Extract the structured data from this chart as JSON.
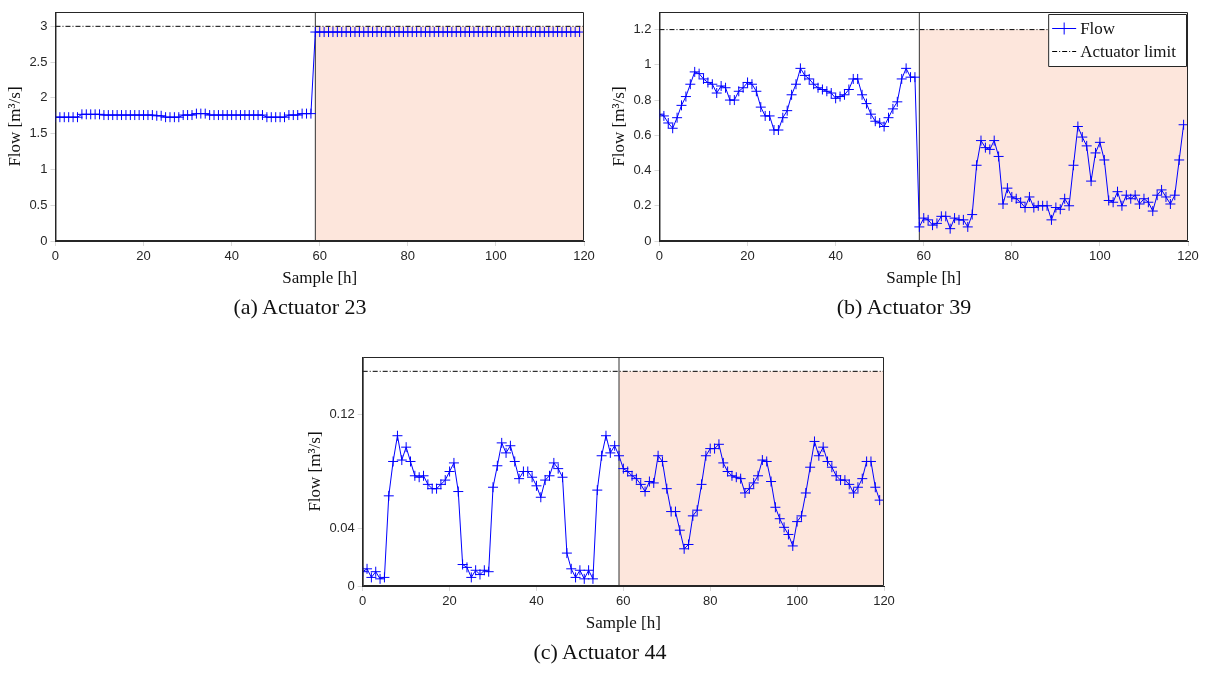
{
  "chart_data": [
    {
      "type": "line",
      "xlabel": "Sample [h]",
      "ylabel": "Flow [m³/s]",
      "annotations": [
        "(a) Actuator 23"
      ],
      "marker": "cross",
      "legend": false,
      "x": [
        0,
        1,
        2,
        3,
        4,
        5,
        6,
        7,
        8,
        9,
        10,
        11,
        12,
        13,
        14,
        15,
        16,
        17,
        18,
        19,
        20,
        21,
        22,
        23,
        24,
        25,
        26,
        27,
        28,
        29,
        30,
        31,
        32,
        33,
        34,
        35,
        36,
        37,
        38,
        39,
        40,
        41,
        42,
        43,
        44,
        45,
        46,
        47,
        48,
        49,
        50,
        51,
        52,
        53,
        54,
        55,
        56,
        57,
        58,
        59,
        60,
        61,
        62,
        63,
        64,
        65,
        66,
        67,
        68,
        69,
        70,
        71,
        72,
        73,
        74,
        75,
        76,
        77,
        78,
        79,
        80,
        81,
        82,
        83,
        84,
        85,
        86,
        87,
        88,
        89,
        90,
        91,
        92,
        93,
        94,
        95,
        96,
        97,
        98,
        99,
        100,
        101,
        102,
        103,
        104,
        105,
        106,
        107,
        108,
        109,
        110,
        111,
        112,
        113,
        114,
        115,
        116,
        117,
        118,
        119
      ],
      "series": [
        {
          "color": "#0000ff",
          "values": [
            1.73,
            1.73,
            1.73,
            1.73,
            1.73,
            1.73,
            1.77,
            1.77,
            1.77,
            1.77,
            1.77,
            1.76,
            1.76,
            1.76,
            1.76,
            1.76,
            1.76,
            1.76,
            1.76,
            1.76,
            1.76,
            1.76,
            1.76,
            1.75,
            1.75,
            1.73,
            1.73,
            1.73,
            1.73,
            1.76,
            1.76,
            1.76,
            1.78,
            1.78,
            1.78,
            1.76,
            1.76,
            1.76,
            1.76,
            1.76,
            1.76,
            1.76,
            1.76,
            1.76,
            1.76,
            1.76,
            1.76,
            1.76,
            1.73,
            1.73,
            1.73,
            1.73,
            1.73,
            1.76,
            1.76,
            1.76,
            1.78,
            1.78,
            1.78,
            2.92,
            2.92,
            2.92,
            2.92,
            2.92,
            2.92,
            2.92,
            2.92,
            2.92,
            2.92,
            2.92,
            2.92,
            2.92,
            2.92,
            2.92,
            2.92,
            2.92,
            2.92,
            2.92,
            2.92,
            2.92,
            2.92,
            2.92,
            2.92,
            2.92,
            2.92,
            2.92,
            2.92,
            2.92,
            2.92,
            2.92,
            2.92,
            2.92,
            2.92,
            2.92,
            2.92,
            2.92,
            2.92,
            2.92,
            2.92,
            2.92,
            2.92,
            2.92,
            2.92,
            2.92,
            2.92,
            2.92,
            2.92,
            2.92,
            2.92,
            2.92,
            2.92,
            2.92,
            2.92,
            2.92,
            2.92,
            2.92,
            2.92,
            2.92,
            2.92,
            2.92
          ]
        }
      ],
      "ref_lines": [
        {
          "axis": "y",
          "value": 3,
          "color": "#000000",
          "line_style": "dashed"
        },
        {
          "axis": "x",
          "value": 59,
          "color": "#333333"
        }
      ],
      "bands": [
        {
          "axis": "x",
          "from": 59,
          "to": 120,
          "color": "#fde6dc"
        }
      ],
      "xlim": [
        0,
        120
      ],
      "xticks": [
        0,
        20,
        40,
        60,
        80,
        100,
        120
      ],
      "ylim": [
        0,
        3.2
      ],
      "yticks": [
        0,
        0.5,
        1,
        1.5,
        2,
        2.5,
        3
      ]
    },
    {
      "type": "line",
      "xlabel": "Sample [h]",
      "ylabel": "Flow [m³/s]",
      "annotations": [
        "(b) Actuator 39"
      ],
      "marker": "cross",
      "legend": "top right",
      "x": [
        0,
        1,
        2,
        3,
        4,
        5,
        6,
        7,
        8,
        9,
        10,
        11,
        12,
        13,
        14,
        15,
        16,
        17,
        18,
        19,
        20,
        21,
        22,
        23,
        24,
        25,
        26,
        27,
        28,
        29,
        30,
        31,
        32,
        33,
        34,
        35,
        36,
        37,
        38,
        39,
        40,
        41,
        42,
        43,
        44,
        45,
        46,
        47,
        48,
        49,
        50,
        51,
        52,
        53,
        54,
        55,
        56,
        57,
        58,
        59,
        60,
        61,
        62,
        63,
        64,
        65,
        66,
        67,
        68,
        69,
        70,
        71,
        72,
        73,
        74,
        75,
        76,
        77,
        78,
        79,
        80,
        81,
        82,
        83,
        84,
        85,
        86,
        87,
        88,
        89,
        90,
        91,
        92,
        93,
        94,
        95,
        96,
        97,
        98,
        99,
        100,
        101,
        102,
        103,
        104,
        105,
        106,
        107,
        108,
        109,
        110,
        111,
        112,
        113,
        114,
        115,
        116,
        117,
        118,
        119
      ],
      "series": [
        {
          "name": "Flow",
          "color": "#0000ff",
          "values": [
            0.72,
            0.71,
            0.67,
            0.64,
            0.7,
            0.77,
            0.82,
            0.89,
            0.96,
            0.95,
            0.92,
            0.9,
            0.89,
            0.84,
            0.88,
            0.87,
            0.8,
            0.8,
            0.85,
            0.87,
            0.9,
            0.89,
            0.85,
            0.76,
            0.71,
            0.71,
            0.63,
            0.63,
            0.7,
            0.74,
            0.83,
            0.89,
            0.98,
            0.94,
            0.92,
            0.89,
            0.87,
            0.86,
            0.85,
            0.84,
            0.81,
            0.82,
            0.83,
            0.86,
            0.92,
            0.92,
            0.83,
            0.78,
            0.72,
            0.68,
            0.67,
            0.65,
            0.7,
            0.75,
            0.79,
            0.92,
            0.98,
            0.93,
            0.93,
            0.08,
            0.13,
            0.12,
            0.09,
            0.1,
            0.14,
            0.14,
            0.07,
            0.13,
            0.12,
            0.12,
            0.08,
            0.15,
            0.43,
            0.57,
            0.53,
            0.52,
            0.57,
            0.48,
            0.21,
            0.3,
            0.25,
            0.24,
            0.22,
            0.19,
            0.25,
            0.19,
            0.2,
            0.2,
            0.2,
            0.12,
            0.19,
            0.18,
            0.24,
            0.2,
            0.43,
            0.65,
            0.59,
            0.54,
            0.34,
            0.5,
            0.56,
            0.46,
            0.23,
            0.22,
            0.28,
            0.2,
            0.26,
            0.24,
            0.26,
            0.21,
            0.24,
            0.22,
            0.17,
            0.26,
            0.29,
            0.25,
            0.21,
            0.26,
            0.46,
            0.66
          ]
        }
      ],
      "ref_lines": [
        {
          "axis": "y",
          "value": 1.2,
          "label": "Actuator limit",
          "color": "#000000",
          "line_style": "dashed"
        },
        {
          "axis": "x",
          "value": 59,
          "color": "#333333"
        }
      ],
      "bands": [
        {
          "axis": "x",
          "from": 59,
          "to": 120,
          "color": "#fde6dc"
        }
      ],
      "xlim": [
        0,
        120
      ],
      "xticks": [
        0,
        20,
        40,
        60,
        80,
        100,
        120
      ],
      "ylim": [
        0,
        1.3
      ],
      "yticks": [
        0,
        0.2,
        0.4,
        0.6,
        0.8,
        1,
        1.2
      ]
    },
    {
      "type": "line",
      "xlabel": "Sample [h]",
      "ylabel": "Flow [m³/s]",
      "annotations": [
        "(c) Actuator 44"
      ],
      "marker": "cross",
      "legend": false,
      "x": [
        0,
        1,
        2,
        3,
        4,
        5,
        6,
        7,
        8,
        9,
        10,
        11,
        12,
        13,
        14,
        15,
        16,
        17,
        18,
        19,
        20,
        21,
        22,
        23,
        24,
        25,
        26,
        27,
        28,
        29,
        30,
        31,
        32,
        33,
        34,
        35,
        36,
        37,
        38,
        39,
        40,
        41,
        42,
        43,
        44,
        45,
        46,
        47,
        48,
        49,
        50,
        51,
        52,
        53,
        54,
        55,
        56,
        57,
        58,
        59,
        60,
        61,
        62,
        63,
        64,
        65,
        66,
        67,
        68,
        69,
        70,
        71,
        72,
        73,
        74,
        75,
        76,
        77,
        78,
        79,
        80,
        81,
        82,
        83,
        84,
        85,
        86,
        87,
        88,
        89,
        90,
        91,
        92,
        93,
        94,
        95,
        96,
        97,
        98,
        99,
        100,
        101,
        102,
        103,
        104,
        105,
        106,
        107,
        108,
        109,
        110,
        111,
        112,
        113,
        114,
        115,
        116,
        117,
        118,
        119
      ],
      "series": [
        {
          "color": "#0000ff",
          "values": [
            0.01,
            0.012,
            0.006,
            0.01,
            0.005,
            0.006,
            0.063,
            0.087,
            0.105,
            0.088,
            0.097,
            0.087,
            0.077,
            0.076,
            0.077,
            0.071,
            0.068,
            0.068,
            0.071,
            0.074,
            0.08,
            0.086,
            0.066,
            0.015,
            0.013,
            0.006,
            0.011,
            0.008,
            0.011,
            0.01,
            0.069,
            0.084,
            0.1,
            0.093,
            0.098,
            0.087,
            0.075,
            0.08,
            0.08,
            0.076,
            0.07,
            0.062,
            0.074,
            0.077,
            0.086,
            0.082,
            0.076,
            0.023,
            0.012,
            0.006,
            0.011,
            0.005,
            0.011,
            0.005,
            0.067,
            0.091,
            0.105,
            0.093,
            0.098,
            0.091,
            0.082,
            0.08,
            0.077,
            0.075,
            0.071,
            0.066,
            0.073,
            0.072,
            0.091,
            0.087,
            0.068,
            0.052,
            0.052,
            0.039,
            0.026,
            0.029,
            0.049,
            0.053,
            0.071,
            0.091,
            0.096,
            0.096,
            0.099,
            0.086,
            0.08,
            0.077,
            0.076,
            0.075,
            0.065,
            0.068,
            0.072,
            0.077,
            0.088,
            0.087,
            0.073,
            0.055,
            0.047,
            0.041,
            0.036,
            0.028,
            0.045,
            0.049,
            0.065,
            0.083,
            0.101,
            0.091,
            0.097,
            0.087,
            0.083,
            0.077,
            0.074,
            0.074,
            0.071,
            0.065,
            0.069,
            0.075,
            0.087,
            0.087,
            0.069,
            0.06
          ]
        }
      ],
      "ref_lines": [
        {
          "axis": "y",
          "value": 0.15,
          "color": "#000000",
          "line_style": "dashed"
        },
        {
          "axis": "x",
          "value": 59,
          "color": "#333333"
        }
      ],
      "bands": [
        {
          "axis": "x",
          "from": 59,
          "to": 120,
          "color": "#fde6dc"
        }
      ],
      "xlim": [
        0,
        120
      ],
      "xticks": [
        0,
        20,
        40,
        60,
        80,
        100,
        120
      ],
      "ylim": [
        0,
        0.16
      ],
      "yticks": [
        0,
        0.04,
        0.12
      ]
    }
  ]
}
